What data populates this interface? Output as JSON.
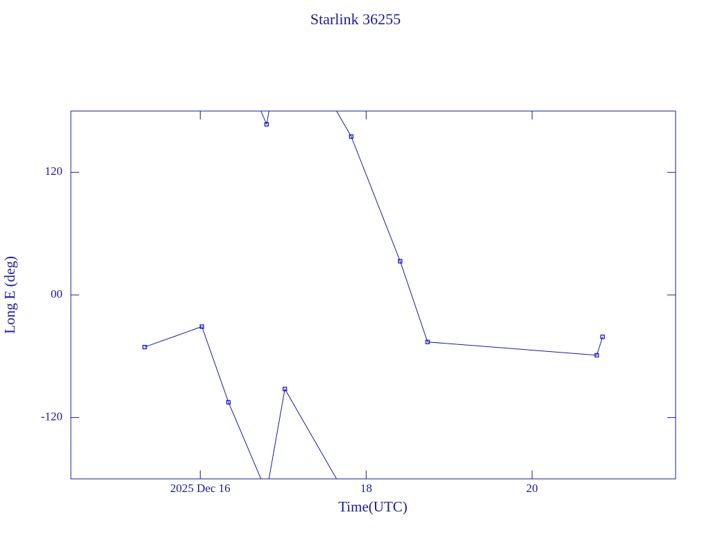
{
  "chart_data": {
    "type": "line",
    "title": "Starlink 36255",
    "x_label": "Time(UTC)",
    "y_label": "Long E (deg)",
    "xlim": [
      14.44,
      21.73
    ],
    "ylim": [
      -180,
      180
    ],
    "xticks": [
      {
        "value": 16,
        "label": "2025 Dec 16"
      },
      18,
      20
    ],
    "yticks": [
      -120,
      {
        "value": 0,
        "label": "00"
      },
      120
    ],
    "wrap": true,
    "series": [
      {
        "color": "#1a1a9c",
        "marker_color": "#0000dd",
        "x": [
          15.33,
          16.02,
          16.34,
          16.8,
          17.02,
          17.82,
          18.41,
          18.74,
          20.78,
          20.85
        ],
        "values": [
          -51,
          -31,
          -105,
          167,
          -92,
          155,
          33,
          -46,
          -59,
          -41
        ]
      }
    ]
  }
}
